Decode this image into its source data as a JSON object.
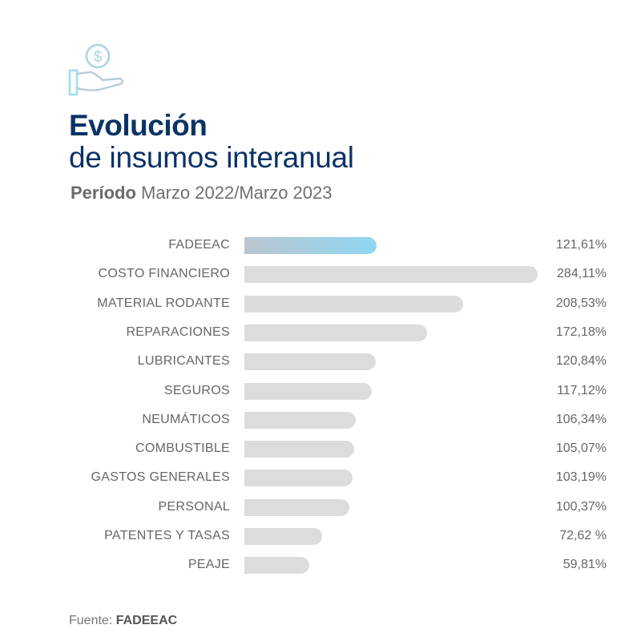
{
  "header": {
    "icon": "hand-holding-dollar-icon",
    "title_line1": "Evolución",
    "title_line2": "de insumos interanual",
    "period_label": "Período",
    "period_value": "Marzo 2022/Marzo 2023"
  },
  "chart_data": {
    "type": "bar",
    "orientation": "horizontal",
    "categories": [
      "FADEEAC",
      "COSTO FINANCIERO",
      "MATERIAL RODANTE",
      "REPARACIONES",
      "LUBRICANTES",
      "SEGUROS",
      "NEUMÁTICOS",
      "COMBUSTIBLE",
      "GASTOS GENERALES",
      "PERSONAL",
      "PATENTES Y TASAS",
      "PEAJE"
    ],
    "values": [
      121.61,
      284.11,
      208.53,
      172.18,
      120.84,
      117.12,
      106.34,
      105.07,
      103.19,
      100.37,
      72.62,
      59.81
    ],
    "value_labels": [
      "121,61%",
      "284,11%",
      "208,53%",
      "172,18%",
      "120,84%",
      "117,12%",
      "106,34%",
      "105,07%",
      "103,19%",
      "100,37%",
      "72,62 %",
      "59,81%"
    ],
    "highlight": "FADEEAC",
    "colors": {
      "bar": "#dcdcdc",
      "highlight_start": "#b9c6cf",
      "highlight_end": "#8fd6f3",
      "title": "#0b3366"
    },
    "grid": false
  },
  "footer": {
    "source_label": "Fuente:",
    "source_value": "FADEEAC"
  }
}
